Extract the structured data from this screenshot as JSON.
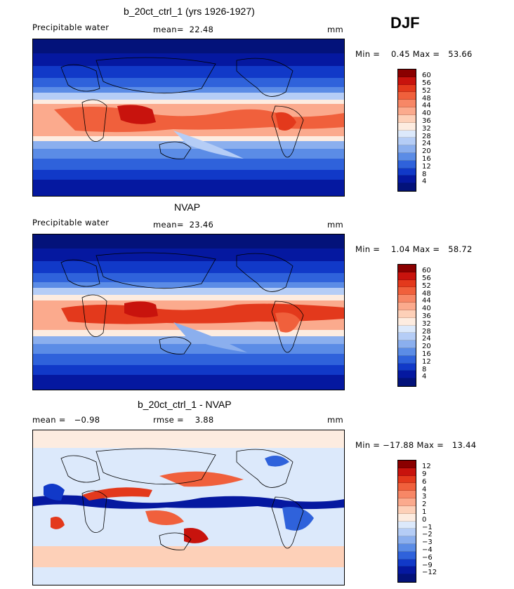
{
  "season": "DJF",
  "panels": [
    {
      "title": "b_20ct_ctrl_1 (yrs 1926-1927)",
      "left_label": "Precipitable water",
      "center_label": "mean=  22.48",
      "units": "mm",
      "range": "Min =    0.45 Max =   53.66",
      "colorbar_ticks": [
        "60",
        "56",
        "52",
        "48",
        "44",
        "40",
        "36",
        "32",
        "28",
        "24",
        "20",
        "16",
        "12",
        "8",
        "4"
      ],
      "colorbar_colors": [
        "#8a0000",
        "#c8130d",
        "#e3391c",
        "#f0603c",
        "#f78766",
        "#fbaa8d",
        "#fdd0b8",
        "#fdece0",
        "#dce9fb",
        "#b5cdf6",
        "#8bafee",
        "#5b8ce6",
        "#2f62db",
        "#1139c8",
        "#0518a0",
        "#03127a"
      ]
    },
    {
      "title": "NVAP",
      "left_label": "Precipitable water",
      "center_label": "mean=  23.46",
      "units": "mm",
      "range": "Min =    1.04 Max =   58.72",
      "colorbar_ticks": [
        "60",
        "56",
        "52",
        "48",
        "44",
        "40",
        "36",
        "32",
        "28",
        "24",
        "20",
        "16",
        "12",
        "8",
        "4"
      ],
      "colorbar_colors": [
        "#8a0000",
        "#c8130d",
        "#e3391c",
        "#f0603c",
        "#f78766",
        "#fbaa8d",
        "#fdd0b8",
        "#fdece0",
        "#dce9fb",
        "#b5cdf6",
        "#8bafee",
        "#5b8ce6",
        "#2f62db",
        "#1139c8",
        "#0518a0",
        "#03127a"
      ]
    },
    {
      "title": "b_20ct_ctrl_1 - NVAP",
      "left_label": "mean =   −0.98",
      "center_label": "rmse =    3.88",
      "units": "mm",
      "range": "Min = −17.88 Max =   13.44",
      "colorbar_ticks": [
        "12",
        "9",
        "6",
        "4",
        "3",
        "2",
        "1",
        "0",
        "−1",
        "−2",
        "−3",
        "−4",
        "−6",
        "−9",
        "−12"
      ],
      "colorbar_colors": [
        "#8a0000",
        "#c8130d",
        "#e3391c",
        "#f0603c",
        "#f78766",
        "#fbaa8d",
        "#fdd0b8",
        "#fdece0",
        "#dce9fb",
        "#b5cdf6",
        "#8bafee",
        "#5b8ce6",
        "#2f62db",
        "#1139c8",
        "#0518a0",
        "#03127a"
      ]
    }
  ]
}
